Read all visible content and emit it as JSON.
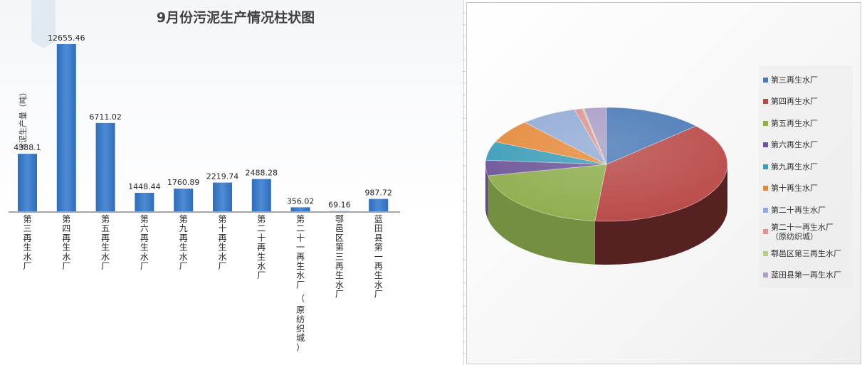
{
  "chart_data": [
    {
      "type": "bar",
      "title": "9月份污泥生产情况柱状图",
      "ylabel": "污泥生产量（吨）",
      "categories": [
        "第三再生水厂",
        "第四再生水厂",
        "第五再生水厂",
        "第六再生水厂",
        "第九再生水厂",
        "第十再生水厂",
        "第二十再生水厂",
        "第二十一再生水厂（原纺织城）",
        "鄠邑区第三再生水厂",
        "蓝田县第一再生水厂"
      ],
      "values": [
        4388.1,
        12655.46,
        6711.02,
        1448.44,
        1760.89,
        2219.74,
        2488.28,
        356.02,
        69.16,
        987.72
      ],
      "value_labels": [
        "4388.1",
        "12655.46",
        "6711.02",
        "1448.44",
        "1760.89",
        "2219.74",
        "2488.28",
        "356.02",
        "69.16",
        "987.72"
      ],
      "ylim": [
        0,
        12655.46
      ],
      "grid": false,
      "colors": {
        "bar": "#2e6db9",
        "bar_light": "#4f8ad6",
        "axis": "#a6a6a6"
      }
    },
    {
      "type": "pie",
      "style": "3d-exploded",
      "categories": [
        "第三再生水厂",
        "第四再生水厂",
        "第五再生水厂",
        "第六再生水厂",
        "第九再生水厂",
        "第十再生水厂",
        "第二十再生水厂",
        "第二十一再生水厂（原纺织城）",
        "鄠邑区第三再生水厂",
        "蓝田县第一再生水厂"
      ],
      "values": [
        4388.1,
        12655.46,
        6711.02,
        1448.44,
        1760.89,
        2219.74,
        2488.28,
        356.02,
        69.16,
        987.72
      ],
      "legend": {
        "placement": "right",
        "entries": [
          "第三再生水厂",
          "第四再生水厂",
          "第五再生水厂",
          "第六再生水厂",
          "第九再生水厂",
          "第十再生水厂",
          "第二十再生水厂",
          "第二十一再生水厂\n（原纺织城）",
          "鄠邑区第三再生水厂",
          "蓝田县第一再生水厂"
        ]
      },
      "colors": [
        "#4a7ab7",
        "#b94a48",
        "#8fae4f",
        "#6e5698",
        "#3d9db7",
        "#e58a3c",
        "#93abd6",
        "#d99593",
        "#b5cd85",
        "#ab9dc6"
      ]
    }
  ]
}
